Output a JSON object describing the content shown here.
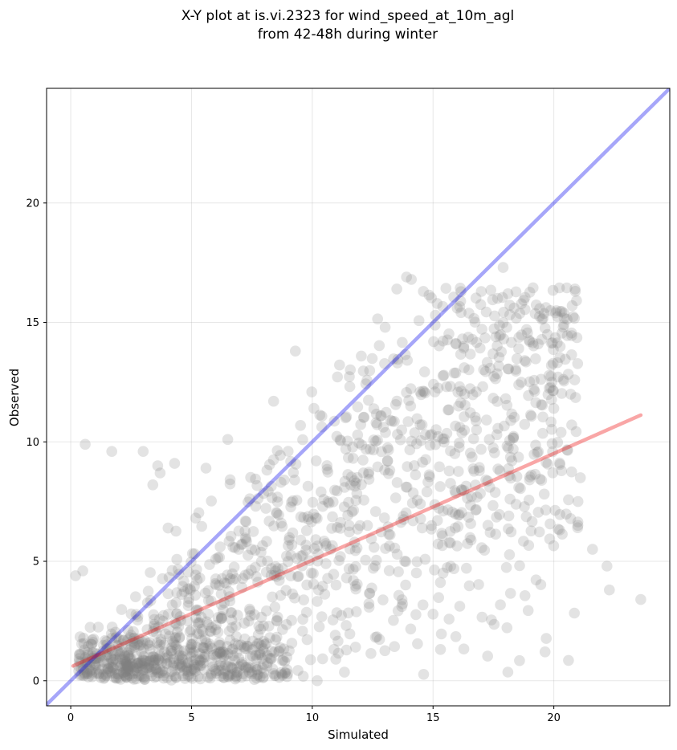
{
  "chart_data": {
    "type": "scatter",
    "title_lines": [
      "X-Y plot at is.vi.2323 for wind_speed_at_10m_agl",
      "from 42-48h during winter"
    ],
    "xlabel": "Simulated",
    "ylabel": "Observed",
    "xlim": [
      -1.0,
      24.8
    ],
    "ylim": [
      -1.05,
      24.8
    ],
    "xticks": [
      0,
      5,
      10,
      15,
      20
    ],
    "yticks": [
      0,
      5,
      10,
      15,
      20
    ],
    "grid": true,
    "point_color": "#808080",
    "point_opacity": 0.22,
    "point_count_approx": 1500,
    "highlighted_points": {
      "x": [
        0.6,
        1.7,
        3.0,
        3.6,
        3.7,
        4.3,
        5.6,
        6.5,
        3.4,
        8.4,
        9.3,
        13.5,
        13.9,
        14.1,
        14.6,
        15.1,
        17.9,
        18.1,
        19.0,
        19.9,
        20.3,
        21.0,
        21.6,
        22.2,
        22.3,
        23.6,
        16.0,
        17.6,
        18.8,
        20.0,
        21.1,
        0.2,
        0.5
      ],
      "y": [
        9.9,
        9.6,
        9.6,
        9.0,
        8.7,
        9.1,
        8.9,
        10.1,
        8.2,
        11.7,
        13.8,
        16.4,
        16.9,
        16.8,
        16.3,
        15.3,
        17.3,
        16.2,
        14.2,
        13.2,
        10.4,
        7.5,
        5.5,
        4.8,
        3.8,
        3.4,
        15.6,
        14.4,
        13.4,
        11.4,
        8.5,
        4.4,
        4.6
      ]
    },
    "series": [
      {
        "name": "",
        "type": "reference_line",
        "color": "#0000ee",
        "opacity": 0.35,
        "x": [
          -1.0,
          24.8
        ],
        "y": [
          -1.0,
          24.8
        ]
      },
      {
        "name": "",
        "type": "fit_line",
        "color": "#ee0000",
        "opacity": 0.35,
        "x": [
          0.1,
          23.6
        ],
        "y": [
          0.62,
          11.12
        ]
      }
    ]
  }
}
